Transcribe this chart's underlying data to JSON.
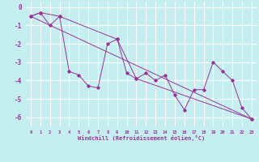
{
  "xlabel": "Windchill (Refroidissement éolien,°C)",
  "background_color": "#c4eef0",
  "line_color": "#993399",
  "grid_color": "#ffffff",
  "text_color": "#993399",
  "ylim": [
    -6.5,
    0.3
  ],
  "xlim": [
    -0.5,
    23.5
  ],
  "yticks": [
    0,
    -1,
    -2,
    -3,
    -4,
    -5,
    -6
  ],
  "xticks": [
    0,
    1,
    2,
    3,
    4,
    5,
    6,
    7,
    8,
    9,
    10,
    11,
    12,
    13,
    14,
    15,
    16,
    17,
    18,
    19,
    20,
    21,
    22,
    23
  ],
  "series1_x": [
    0,
    1,
    2,
    3,
    4,
    5,
    6,
    7,
    8,
    9,
    10,
    11,
    12,
    13,
    14,
    15,
    16,
    17,
    18,
    19,
    20,
    21,
    22,
    23
  ],
  "series1_y": [
    -0.5,
    -0.3,
    -1.0,
    -0.5,
    -3.5,
    -3.7,
    -4.3,
    -4.4,
    -2.0,
    -1.75,
    -3.6,
    -3.9,
    -3.6,
    -4.0,
    -3.7,
    -4.8,
    -5.6,
    -4.5,
    -4.5,
    -3.0,
    -3.5,
    -4.0,
    -5.5,
    -6.1
  ],
  "series2_x": [
    0,
    1,
    3,
    9,
    11,
    23
  ],
  "series2_y": [
    -0.5,
    -0.3,
    -0.5,
    -1.75,
    -3.9,
    -6.1
  ],
  "series3_x": [
    0,
    23
  ],
  "series3_y": [
    -0.5,
    -6.1
  ],
  "marker_size": 1.8,
  "line_width": 0.7
}
